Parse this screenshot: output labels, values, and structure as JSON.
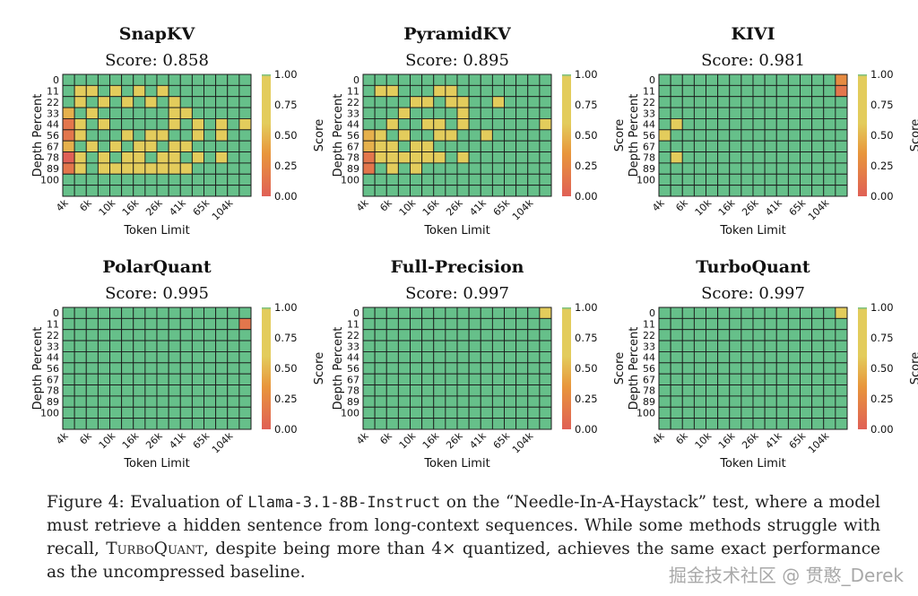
{
  "colors": {
    "green": "#66c08a",
    "yellow": "#e3cc5c",
    "orange": "#e8963c",
    "red": "#e06056",
    "gridline": "#1a1a1a"
  },
  "colorbar": {
    "label": "Score",
    "ticks": [
      "1.00",
      "0.75",
      "0.50",
      "0.25",
      "0.00"
    ],
    "min": 0,
    "max": 1
  },
  "chart_data": [
    {
      "type": "heatmap",
      "title": "SnapKV",
      "score_label": "Score: 0.858",
      "xlabel": "Token Limit",
      "ylabel": "Depth Percent",
      "x_ticks": [
        "4k",
        "6k",
        "10k",
        "16k",
        "26k",
        "41k",
        "65k",
        "104k"
      ],
      "y_ticks": [
        "0",
        "11",
        "22",
        "33",
        "44",
        "56",
        "67",
        "78",
        "89",
        "100"
      ],
      "rows": 11,
      "cols": 16,
      "default": 1.0,
      "cells": [
        [
          1,
          1,
          0.7
        ],
        [
          1,
          2,
          0.7
        ],
        [
          1,
          4,
          0.7
        ],
        [
          1,
          6,
          0.7
        ],
        [
          1,
          8,
          0.7
        ],
        [
          2,
          1,
          0.7
        ],
        [
          2,
          3,
          0.7
        ],
        [
          2,
          5,
          0.7
        ],
        [
          2,
          7,
          0.7
        ],
        [
          2,
          9,
          0.7
        ],
        [
          3,
          0,
          0.6
        ],
        [
          3,
          2,
          0.7
        ],
        [
          3,
          9,
          0.7
        ],
        [
          3,
          10,
          0.7
        ],
        [
          4,
          0,
          0.35
        ],
        [
          4,
          1,
          0.7
        ],
        [
          4,
          3,
          0.7
        ],
        [
          4,
          9,
          0.7
        ],
        [
          4,
          11,
          0.7
        ],
        [
          4,
          13,
          0.7
        ],
        [
          4,
          15,
          0.7
        ],
        [
          5,
          0,
          0.35
        ],
        [
          5,
          1,
          0.7
        ],
        [
          5,
          5,
          0.7
        ],
        [
          5,
          7,
          0.7
        ],
        [
          5,
          8,
          0.7
        ],
        [
          5,
          11,
          0.7
        ],
        [
          5,
          13,
          0.7
        ],
        [
          6,
          0,
          0.6
        ],
        [
          6,
          2,
          0.7
        ],
        [
          6,
          4,
          0.7
        ],
        [
          6,
          6,
          0.7
        ],
        [
          6,
          7,
          0.7
        ],
        [
          6,
          9,
          0.7
        ],
        [
          6,
          10,
          0.7
        ],
        [
          7,
          0,
          0.2
        ],
        [
          7,
          1,
          0.7
        ],
        [
          7,
          3,
          0.7
        ],
        [
          7,
          5,
          0.7
        ],
        [
          7,
          6,
          0.7
        ],
        [
          7,
          8,
          0.7
        ],
        [
          7,
          9,
          0.7
        ],
        [
          7,
          11,
          0.7
        ],
        [
          7,
          13,
          0.7
        ],
        [
          8,
          0,
          0.35
        ],
        [
          8,
          1,
          0.7
        ],
        [
          8,
          3,
          0.7
        ],
        [
          8,
          4,
          0.7
        ],
        [
          8,
          5,
          0.7
        ],
        [
          8,
          6,
          0.7
        ],
        [
          8,
          7,
          0.7
        ],
        [
          8,
          8,
          0.7
        ],
        [
          8,
          9,
          0.7
        ],
        [
          8,
          10,
          0.7
        ]
      ]
    },
    {
      "type": "heatmap",
      "title": "PyramidKV",
      "score_label": "Score: 0.895",
      "xlabel": "Token Limit",
      "ylabel": "Depth Percent",
      "x_ticks": [
        "4k",
        "6k",
        "10k",
        "16k",
        "26k",
        "41k",
        "65k",
        "104k"
      ],
      "y_ticks": [
        "0",
        "11",
        "22",
        "33",
        "44",
        "56",
        "67",
        "78",
        "89",
        "100"
      ],
      "rows": 11,
      "cols": 16,
      "default": 1.0,
      "cells": [
        [
          1,
          1,
          0.7
        ],
        [
          1,
          2,
          0.7
        ],
        [
          1,
          6,
          0.7
        ],
        [
          1,
          7,
          0.7
        ],
        [
          2,
          4,
          0.7
        ],
        [
          2,
          5,
          0.7
        ],
        [
          2,
          7,
          0.7
        ],
        [
          2,
          8,
          0.7
        ],
        [
          2,
          11,
          0.7
        ],
        [
          3,
          3,
          0.7
        ],
        [
          3,
          8,
          0.7
        ],
        [
          4,
          2,
          0.7
        ],
        [
          4,
          5,
          0.7
        ],
        [
          4,
          6,
          0.7
        ],
        [
          4,
          8,
          0.7
        ],
        [
          4,
          15,
          0.7
        ],
        [
          5,
          0,
          0.6
        ],
        [
          5,
          1,
          0.7
        ],
        [
          5,
          3,
          0.7
        ],
        [
          5,
          6,
          0.7
        ],
        [
          5,
          7,
          0.7
        ],
        [
          5,
          10,
          0.7
        ],
        [
          6,
          0,
          0.6
        ],
        [
          6,
          1,
          0.7
        ],
        [
          6,
          2,
          0.7
        ],
        [
          6,
          4,
          0.7
        ],
        [
          6,
          5,
          0.7
        ],
        [
          7,
          0,
          0.35
        ],
        [
          7,
          1,
          0.7
        ],
        [
          7,
          2,
          0.7
        ],
        [
          7,
          3,
          0.7
        ],
        [
          7,
          4,
          0.7
        ],
        [
          7,
          5,
          0.7
        ],
        [
          7,
          6,
          0.7
        ],
        [
          7,
          8,
          0.7
        ],
        [
          8,
          0,
          0.35
        ],
        [
          8,
          2,
          0.7
        ],
        [
          8,
          4,
          0.7
        ]
      ]
    },
    {
      "type": "heatmap",
      "title": "KIVI",
      "score_label": "Score: 0.981",
      "xlabel": "Token Limit",
      "ylabel": "Depth Percent",
      "x_ticks": [
        "4k",
        "6k",
        "10k",
        "16k",
        "26k",
        "41k",
        "65k",
        "104k"
      ],
      "y_ticks": [
        "0",
        "11",
        "22",
        "33",
        "44",
        "56",
        "67",
        "78",
        "89",
        "100"
      ],
      "rows": 11,
      "cols": 16,
      "default": 1.0,
      "cells": [
        [
          0,
          15,
          0.45
        ],
        [
          1,
          15,
          0.35
        ],
        [
          4,
          1,
          0.7
        ],
        [
          5,
          0,
          0.7
        ],
        [
          7,
          1,
          0.7
        ]
      ]
    },
    {
      "type": "heatmap",
      "title": "PolarQuant",
      "score_label": "Score: 0.995",
      "xlabel": "Token Limit",
      "ylabel": "Depth Percent",
      "x_ticks": [
        "4k",
        "6k",
        "10k",
        "16k",
        "26k",
        "41k",
        "65k",
        "104k"
      ],
      "y_ticks": [
        "0",
        "11",
        "22",
        "33",
        "44",
        "56",
        "67",
        "78",
        "89",
        "100"
      ],
      "rows": 11,
      "cols": 16,
      "default": 1.0,
      "cells": [
        [
          1,
          15,
          0.35
        ]
      ]
    },
    {
      "type": "heatmap",
      "title": "Full-Precision",
      "score_label": "Score: 0.997",
      "xlabel": "Token Limit",
      "ylabel": "Depth Percent",
      "x_ticks": [
        "4k",
        "6k",
        "10k",
        "16k",
        "26k",
        "41k",
        "65k",
        "104k"
      ],
      "y_ticks": [
        "0",
        "11",
        "22",
        "33",
        "44",
        "56",
        "67",
        "78",
        "89",
        "100"
      ],
      "rows": 11,
      "cols": 16,
      "default": 1.0,
      "cells": [
        [
          0,
          15,
          0.7
        ]
      ]
    },
    {
      "type": "heatmap",
      "title": "TurboQuant",
      "score_label": "Score: 0.997",
      "xlabel": "Token Limit",
      "ylabel": "Depth Percent",
      "x_ticks": [
        "4k",
        "6k",
        "10k",
        "16k",
        "26k",
        "41k",
        "65k",
        "104k"
      ],
      "y_ticks": [
        "0",
        "11",
        "22",
        "33",
        "44",
        "56",
        "67",
        "78",
        "89",
        "100"
      ],
      "rows": 11,
      "cols": 16,
      "default": 1.0,
      "cells": [
        [
          0,
          15,
          0.7
        ]
      ]
    }
  ],
  "caption": {
    "prefix": "Figure 4:  Evaluation of ",
    "model": "Llama-3.1-8B-Instruct",
    "mid": " on the “Needle-In-A-Haystack” test, where a model must retrieve a hidden sentence from long-context sequences. While some methods struggle with recall, ",
    "method": "TurboQuant",
    "suffix": ", despite being more than 4× quantized, achieves the same exact performance as the uncompressed baseline."
  },
  "watermark": "掘金技术社区 @ 贯憨_Derek"
}
